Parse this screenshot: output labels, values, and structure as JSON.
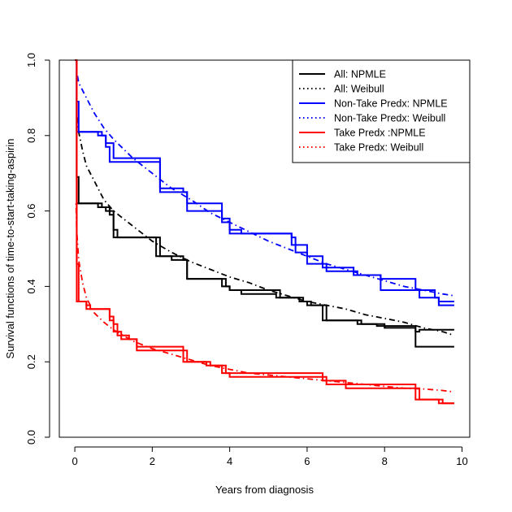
{
  "chart_data": {
    "type": "line",
    "title": "",
    "xlabel": "Years from diagnosis",
    "ylabel": "Survival functions of time-to-start-taking-aspirin",
    "xlim": [
      -0.4,
      10.2
    ],
    "ylim": [
      0,
      1
    ],
    "x_ticks": [
      0,
      2,
      4,
      6,
      8,
      10
    ],
    "y_ticks": [
      0.0,
      0.2,
      0.4,
      0.6,
      0.8,
      1.0
    ],
    "x_tick_labels": [
      "0",
      "2",
      "4",
      "6",
      "8",
      "10"
    ],
    "y_tick_labels": [
      "0.0",
      "0.2",
      "0.4",
      "0.6",
      "0.8",
      "1.0"
    ],
    "grid": false,
    "legend_position": "top-right",
    "legend": [
      {
        "label": "All: NPMLE",
        "color": "#000000",
        "dash": "solid"
      },
      {
        "label": "All: Weibull",
        "color": "#000000",
        "dash": "dotted"
      },
      {
        "label": "Non-Take Predx: NPMLE",
        "color": "#0000FF",
        "dash": "solid"
      },
      {
        "label": "Non-Take Predx: Weibull",
        "color": "#0000FF",
        "dash": "dotted"
      },
      {
        "label": "Take Predx :NPMLE",
        "color": "#FF0000",
        "dash": "solid"
      },
      {
        "label": "Take Predx: Weibull",
        "color": "#FF0000",
        "dash": "dotted"
      }
    ],
    "series": [
      {
        "group": "All",
        "kind": "npmle",
        "color": "#000000",
        "dash": "solid",
        "upper": [
          [
            0,
            1.0
          ],
          [
            0.05,
            0.69
          ],
          [
            0.1,
            0.62
          ],
          [
            0.7,
            0.61
          ],
          [
            0.9,
            0.59
          ],
          [
            1.0,
            0.53
          ],
          [
            1.6,
            0.53
          ],
          [
            2.1,
            0.48
          ],
          [
            2.5,
            0.47
          ],
          [
            2.9,
            0.42
          ],
          [
            3.8,
            0.4
          ],
          [
            4.0,
            0.39
          ],
          [
            4.3,
            0.38
          ],
          [
            5.2,
            0.37
          ],
          [
            5.8,
            0.36
          ],
          [
            6.0,
            0.35
          ],
          [
            6.5,
            0.31
          ],
          [
            7.3,
            0.3
          ],
          [
            7.8,
            0.295
          ],
          [
            8.8,
            0.28
          ],
          [
            8.9,
            0.285
          ],
          [
            9.8,
            0.285
          ]
        ],
        "lower": [
          [
            0,
            1.0
          ],
          [
            0.05,
            0.62
          ],
          [
            0.6,
            0.61
          ],
          [
            0.8,
            0.6
          ],
          [
            1.0,
            0.55
          ],
          [
            1.1,
            0.53
          ],
          [
            1.7,
            0.53
          ],
          [
            2.2,
            0.48
          ],
          [
            2.8,
            0.47
          ],
          [
            2.9,
            0.42
          ],
          [
            3.9,
            0.4
          ],
          [
            4.0,
            0.39
          ],
          [
            5.3,
            0.37
          ],
          [
            5.9,
            0.36
          ],
          [
            6.1,
            0.35
          ],
          [
            6.4,
            0.31
          ],
          [
            7.4,
            0.3
          ],
          [
            8.0,
            0.29
          ],
          [
            8.8,
            0.24
          ],
          [
            9.8,
            0.24
          ]
        ]
      },
      {
        "group": "All",
        "kind": "weibull",
        "color": "#000000",
        "dash": "dotdash",
        "points": [
          [
            0.05,
            0.86
          ],
          [
            0.1,
            0.81
          ],
          [
            0.2,
            0.76
          ],
          [
            0.3,
            0.72
          ],
          [
            0.5,
            0.68
          ],
          [
            0.75,
            0.63
          ],
          [
            1.0,
            0.6
          ],
          [
            1.5,
            0.56
          ],
          [
            2.0,
            0.52
          ],
          [
            2.5,
            0.49
          ],
          [
            3.0,
            0.465
          ],
          [
            3.5,
            0.445
          ],
          [
            4.0,
            0.425
          ],
          [
            4.5,
            0.41
          ],
          [
            5.0,
            0.39
          ],
          [
            5.5,
            0.375
          ],
          [
            6.0,
            0.36
          ],
          [
            6.5,
            0.35
          ],
          [
            7.0,
            0.34
          ],
          [
            7.5,
            0.325
          ],
          [
            8.0,
            0.315
          ],
          [
            8.5,
            0.305
          ],
          [
            9.0,
            0.29
          ],
          [
            9.5,
            0.28
          ],
          [
            9.8,
            0.27
          ]
        ]
      },
      {
        "group": "Non-Take Predx",
        "kind": "npmle",
        "color": "#0000FF",
        "dash": "solid",
        "upper": [
          [
            0,
            1.0
          ],
          [
            0.05,
            0.89
          ],
          [
            0.1,
            0.81
          ],
          [
            0.7,
            0.8
          ],
          [
            0.8,
            0.78
          ],
          [
            1.0,
            0.74
          ],
          [
            2.1,
            0.74
          ],
          [
            2.2,
            0.66
          ],
          [
            2.8,
            0.65
          ],
          [
            2.9,
            0.62
          ],
          [
            3.8,
            0.58
          ],
          [
            4.0,
            0.55
          ],
          [
            4.3,
            0.54
          ],
          [
            5.6,
            0.53
          ],
          [
            5.7,
            0.49
          ],
          [
            6.0,
            0.48
          ],
          [
            6.4,
            0.45
          ],
          [
            7.2,
            0.43
          ],
          [
            7.9,
            0.42
          ],
          [
            8.8,
            0.39
          ],
          [
            9.3,
            0.37
          ],
          [
            9.4,
            0.36
          ],
          [
            9.8,
            0.36
          ]
        ],
        "lower": [
          [
            0,
            1.0
          ],
          [
            0.05,
            0.81
          ],
          [
            0.6,
            0.8
          ],
          [
            0.8,
            0.77
          ],
          [
            0.9,
            0.73
          ],
          [
            2.0,
            0.73
          ],
          [
            2.2,
            0.65
          ],
          [
            2.9,
            0.6
          ],
          [
            3.8,
            0.57
          ],
          [
            4.0,
            0.54
          ],
          [
            5.6,
            0.51
          ],
          [
            6.0,
            0.46
          ],
          [
            6.5,
            0.44
          ],
          [
            7.3,
            0.43
          ],
          [
            7.9,
            0.39
          ],
          [
            8.9,
            0.37
          ],
          [
            9.4,
            0.35
          ],
          [
            9.8,
            0.35
          ]
        ]
      },
      {
        "group": "Non-Take Predx",
        "kind": "weibull",
        "color": "#0000FF",
        "dash": "dotdash",
        "points": [
          [
            0.05,
            0.97
          ],
          [
            0.1,
            0.94
          ],
          [
            0.3,
            0.9
          ],
          [
            0.5,
            0.86
          ],
          [
            0.75,
            0.82
          ],
          [
            1.0,
            0.79
          ],
          [
            1.5,
            0.74
          ],
          [
            2.0,
            0.7
          ],
          [
            2.5,
            0.66
          ],
          [
            3.0,
            0.63
          ],
          [
            3.5,
            0.595
          ],
          [
            4.0,
            0.57
          ],
          [
            4.5,
            0.545
          ],
          [
            5.0,
            0.52
          ],
          [
            5.5,
            0.5
          ],
          [
            6.0,
            0.48
          ],
          [
            6.5,
            0.46
          ],
          [
            7.0,
            0.445
          ],
          [
            7.5,
            0.43
          ],
          [
            8.0,
            0.415
          ],
          [
            8.5,
            0.4
          ],
          [
            9.0,
            0.39
          ],
          [
            9.5,
            0.38
          ],
          [
            9.8,
            0.375
          ]
        ]
      },
      {
        "group": "Take Predx",
        "kind": "npmle",
        "color": "#FF0000",
        "dash": "solid",
        "upper": [
          [
            0,
            1.0
          ],
          [
            0.05,
            0.46
          ],
          [
            0.1,
            0.36
          ],
          [
            0.3,
            0.35
          ],
          [
            0.4,
            0.34
          ],
          [
            0.9,
            0.32
          ],
          [
            1.0,
            0.3
          ],
          [
            1.1,
            0.27
          ],
          [
            1.4,
            0.26
          ],
          [
            1.6,
            0.24
          ],
          [
            2.8,
            0.23
          ],
          [
            2.9,
            0.2
          ],
          [
            3.5,
            0.19
          ],
          [
            3.9,
            0.17
          ],
          [
            6.4,
            0.15
          ],
          [
            7.0,
            0.14
          ],
          [
            8.8,
            0.1
          ],
          [
            9.4,
            0.09
          ],
          [
            9.8,
            0.09
          ]
        ],
        "lower": [
          [
            0,
            1.0
          ],
          [
            0.05,
            0.36
          ],
          [
            0.3,
            0.34
          ],
          [
            0.9,
            0.31
          ],
          [
            1.0,
            0.28
          ],
          [
            1.2,
            0.26
          ],
          [
            1.6,
            0.23
          ],
          [
            2.8,
            0.2
          ],
          [
            3.4,
            0.19
          ],
          [
            3.8,
            0.17
          ],
          [
            4.0,
            0.16
          ],
          [
            6.5,
            0.14
          ],
          [
            7.0,
            0.13
          ],
          [
            8.9,
            0.1
          ],
          [
            9.5,
            0.09
          ],
          [
            9.8,
            0.09
          ]
        ]
      },
      {
        "group": "Take Predx",
        "kind": "weibull",
        "color": "#FF0000",
        "dash": "dotdash",
        "points": [
          [
            0.03,
            0.62
          ],
          [
            0.05,
            0.55
          ],
          [
            0.1,
            0.47
          ],
          [
            0.2,
            0.41
          ],
          [
            0.3,
            0.37
          ],
          [
            0.5,
            0.33
          ],
          [
            0.75,
            0.305
          ],
          [
            1.0,
            0.285
          ],
          [
            1.5,
            0.255
          ],
          [
            2.0,
            0.235
          ],
          [
            2.5,
            0.22
          ],
          [
            3.0,
            0.205
          ],
          [
            3.5,
            0.19
          ],
          [
            4.0,
            0.18
          ],
          [
            4.5,
            0.17
          ],
          [
            5.0,
            0.165
          ],
          [
            5.5,
            0.16
          ],
          [
            6.0,
            0.155
          ],
          [
            6.5,
            0.15
          ],
          [
            7.0,
            0.145
          ],
          [
            7.5,
            0.14
          ],
          [
            8.0,
            0.135
          ],
          [
            8.5,
            0.13
          ],
          [
            9.0,
            0.128
          ],
          [
            9.5,
            0.124
          ],
          [
            9.8,
            0.12
          ]
        ]
      }
    ]
  }
}
